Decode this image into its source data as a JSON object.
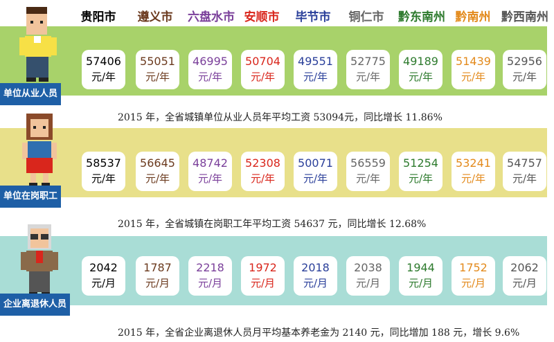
{
  "cities": [
    {
      "name": "贵阳市",
      "color": "#000000"
    },
    {
      "name": "遵义市",
      "color": "#6b3a1e"
    },
    {
      "name": "六盘水市",
      "color": "#7a3f9a"
    },
    {
      "name": "安顺市",
      "color": "#d9261c"
    },
    {
      "name": "毕节市",
      "color": "#2a3f9a"
    },
    {
      "name": "铜仁市",
      "color": "#666666"
    },
    {
      "name": "黔东南州",
      "color": "#2d7a2d"
    },
    {
      "name": "黔南州",
      "color": "#e38a1c"
    },
    {
      "name": "黔西南州",
      "color": "#555555"
    }
  ],
  "sections": [
    {
      "label": "单位从业人员",
      "band_color": "#a8d26a",
      "unit": "元/年",
      "values": [
        "57406",
        "55051",
        "46995",
        "50704",
        "49551",
        "52775",
        "49189",
        "51439",
        "52956"
      ],
      "note": "2015 年，全省城镇单位从业人员年平均工资 53094元，同比增长 11.86%"
    },
    {
      "label": "单位在岗职工",
      "band_color": "#e8e08a",
      "unit": "元/年",
      "values": [
        "58537",
        "56645",
        "48742",
        "52308",
        "50071",
        "56559",
        "51254",
        "53241",
        "54757"
      ],
      "note": "2015 年，全省城镇在岗职工年平均工资 54637 元，同比增长 12.68%"
    },
    {
      "label": "企业离退休人员",
      "band_color": "#a9ddd6",
      "unit": "元/月",
      "values": [
        "2042",
        "1787",
        "2218",
        "1972",
        "2018",
        "2038",
        "1944",
        "1752",
        "2062"
      ],
      "note": "2015 年，全省企业离退休人员月平均基本养老金为 2140 元，同比增加 188 元，增长 9.6%"
    }
  ]
}
